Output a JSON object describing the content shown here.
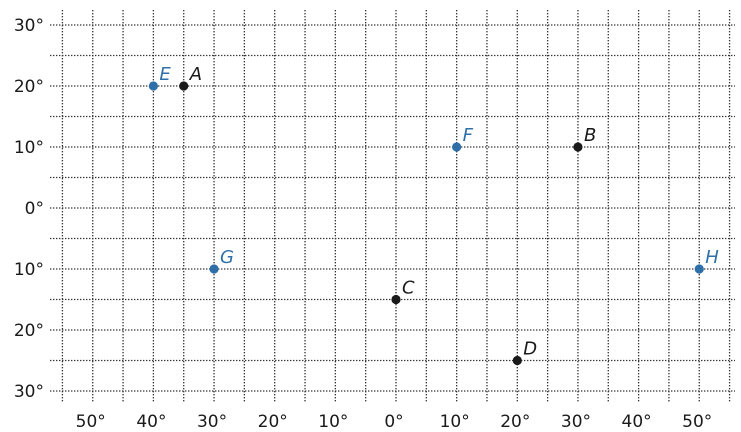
{
  "chart_data": {
    "type": "scatter",
    "xlim": [
      -55,
      55
    ],
    "ylim": [
      -30,
      30
    ],
    "grid": true,
    "grid_step": 5,
    "grid_style": "dotted",
    "x_tick_labels": [
      {
        "value": -50,
        "label": "50°"
      },
      {
        "value": -40,
        "label": "40°"
      },
      {
        "value": -30,
        "label": "30°"
      },
      {
        "value": -20,
        "label": "20°"
      },
      {
        "value": -10,
        "label": "10°"
      },
      {
        "value": 0,
        "label": "0°"
      },
      {
        "value": 10,
        "label": "10°"
      },
      {
        "value": 20,
        "label": "20°"
      },
      {
        "value": 30,
        "label": "30°"
      },
      {
        "value": 40,
        "label": "40°"
      },
      {
        "value": 50,
        "label": "50°"
      }
    ],
    "y_tick_labels": [
      {
        "value": 30,
        "label": "30°"
      },
      {
        "value": 20,
        "label": "20°"
      },
      {
        "value": 10,
        "label": "10°"
      },
      {
        "value": 0,
        "label": "0°"
      },
      {
        "value": -10,
        "label": "10°"
      },
      {
        "value": -20,
        "label": "20°"
      },
      {
        "value": -30,
        "label": "30°"
      }
    ],
    "points": [
      {
        "label": "A",
        "x": -35,
        "y": 20,
        "color": "#1a1a1a"
      },
      {
        "label": "B",
        "x": 30,
        "y": 10,
        "color": "#1a1a1a"
      },
      {
        "label": "C",
        "x": 0,
        "y": -15,
        "color": "#1a1a1a"
      },
      {
        "label": "D",
        "x": 20,
        "y": -25,
        "color": "#1a1a1a"
      },
      {
        "label": "E",
        "x": -40,
        "y": 20,
        "color": "#2f6fa8"
      },
      {
        "label": "F",
        "x": 10,
        "y": 10,
        "color": "#2f6fa8"
      },
      {
        "label": "G",
        "x": -30,
        "y": -10,
        "color": "#2f6fa8"
      },
      {
        "label": "H",
        "x": 50,
        "y": -10,
        "color": "#2f6fa8"
      }
    ]
  }
}
